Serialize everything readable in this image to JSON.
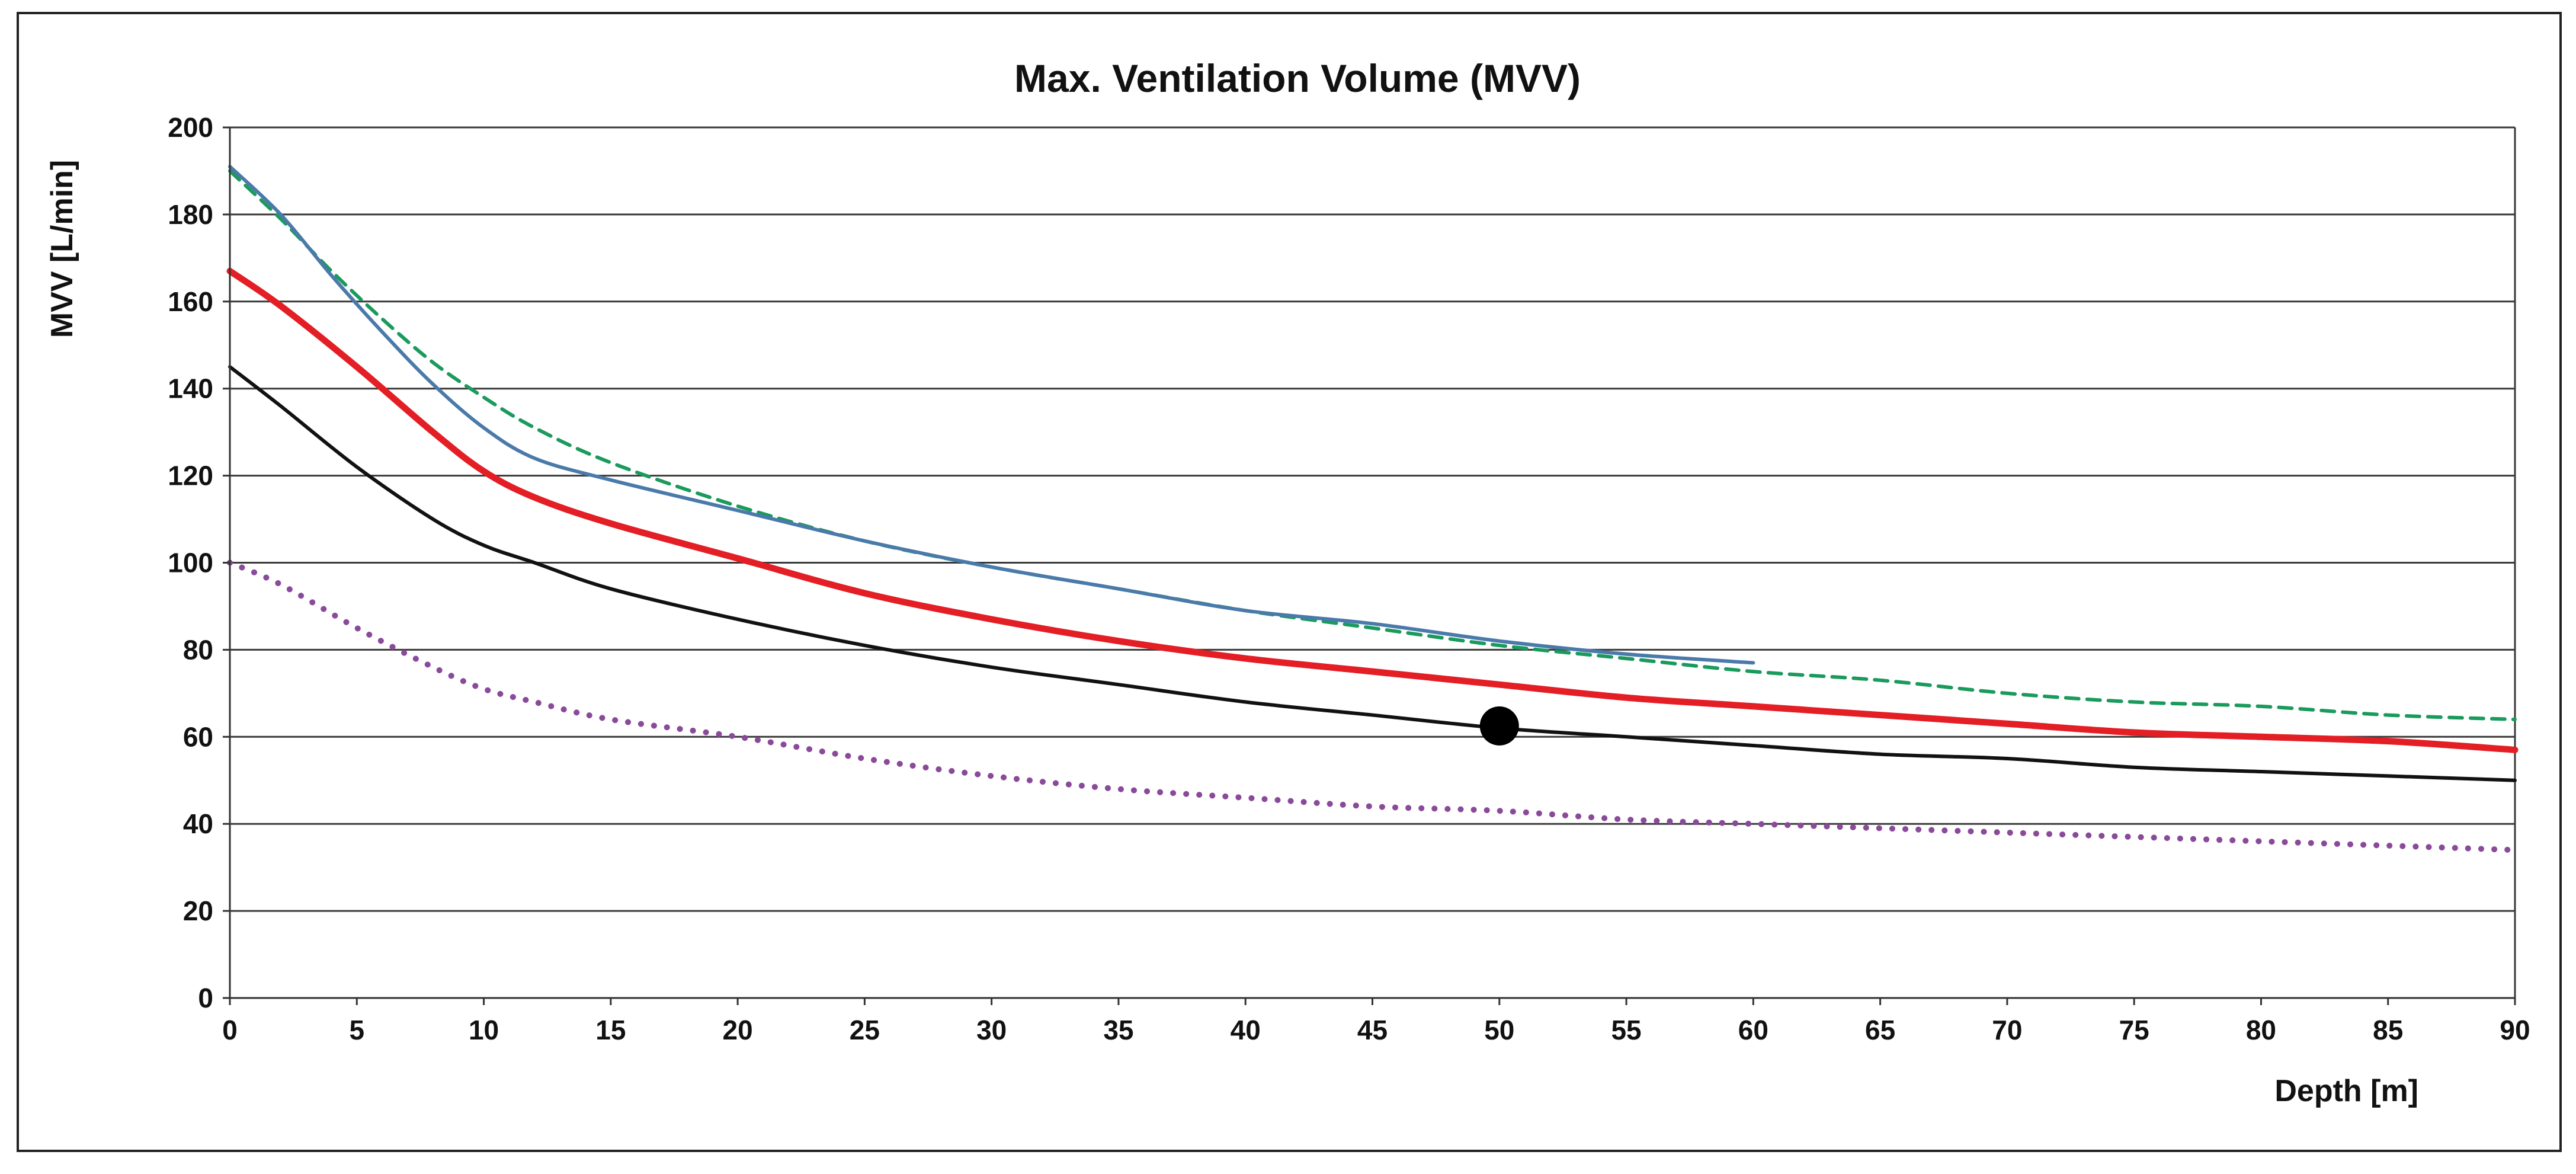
{
  "chart_data": {
    "type": "line",
    "title": "Max. Ventilation Volume (MVV)",
    "xlabel": "Depth [m]",
    "ylabel": "MVV  [L/min]",
    "xlim": [
      0,
      90
    ],
    "ylim": [
      0,
      200
    ],
    "xticks": [
      0,
      5,
      10,
      15,
      20,
      25,
      30,
      35,
      40,
      45,
      50,
      55,
      60,
      65,
      70,
      75,
      80,
      85,
      90
    ],
    "yticks": [
      0,
      20,
      40,
      60,
      80,
      100,
      120,
      140,
      160,
      180,
      200
    ],
    "grid": true,
    "legend": "none",
    "series": [
      {
        "name": "green-dashed",
        "color": "#1a9a5c",
        "style": "dashed",
        "x": [
          0,
          2,
          4,
          6,
          8,
          10,
          12,
          15,
          20,
          25,
          30,
          35,
          40,
          45,
          50,
          55,
          60,
          65,
          70,
          75,
          80,
          85,
          90
        ],
        "y": [
          190,
          179,
          167,
          156,
          146,
          138,
          131,
          123,
          113,
          105,
          99,
          94,
          89,
          85,
          81,
          78,
          75,
          73,
          70,
          68,
          67,
          65,
          64
        ]
      },
      {
        "name": "blue",
        "color": "#4a7aaa",
        "style": "solid",
        "x": [
          0,
          2,
          4,
          6,
          8,
          10,
          12,
          15,
          20,
          25,
          30,
          35,
          40,
          45,
          50,
          55,
          60
        ],
        "y": [
          191,
          180,
          166,
          153,
          141,
          131,
          124,
          119,
          112,
          105,
          99,
          94,
          89,
          86,
          82,
          79,
          77
        ]
      },
      {
        "name": "red",
        "color": "#e31e24",
        "style": "solid",
        "x": [
          0,
          2,
          5,
          8,
          10,
          12,
          15,
          20,
          25,
          30,
          35,
          40,
          45,
          50,
          55,
          60,
          65,
          70,
          75,
          80,
          85,
          90
        ],
        "y": [
          167,
          159,
          145,
          130,
          121,
          115,
          109,
          101,
          93,
          87,
          82,
          78,
          75,
          72,
          69,
          67,
          65,
          63,
          61,
          60,
          59,
          57
        ]
      },
      {
        "name": "black",
        "color": "#111111",
        "style": "solid",
        "x": [
          0,
          2,
          5,
          8,
          10,
          12,
          15,
          20,
          25,
          30,
          35,
          40,
          45,
          50,
          55,
          60,
          65,
          70,
          75,
          80,
          85,
          90
        ],
        "y": [
          145,
          136,
          122,
          110,
          104,
          100,
          94,
          87,
          81,
          76,
          72,
          68,
          65,
          62,
          60,
          58,
          56,
          55,
          53,
          52,
          51,
          50
        ]
      },
      {
        "name": "purple-dotted",
        "color": "#8a4a9a",
        "style": "dotted",
        "x": [
          0,
          2,
          5,
          8,
          10,
          12,
          15,
          20,
          25,
          30,
          35,
          40,
          45,
          50,
          55,
          60,
          65,
          70,
          75,
          80,
          85,
          90
        ],
        "y": [
          100,
          95,
          85,
          76,
          71,
          68,
          64,
          60,
          55,
          51,
          48,
          46,
          44,
          43,
          41,
          40,
          39,
          38,
          37,
          36,
          35,
          34
        ]
      }
    ],
    "markers": [
      {
        "name": "point-at-50m",
        "x": 50,
        "y": 62.5,
        "color": "#000000"
      }
    ]
  }
}
